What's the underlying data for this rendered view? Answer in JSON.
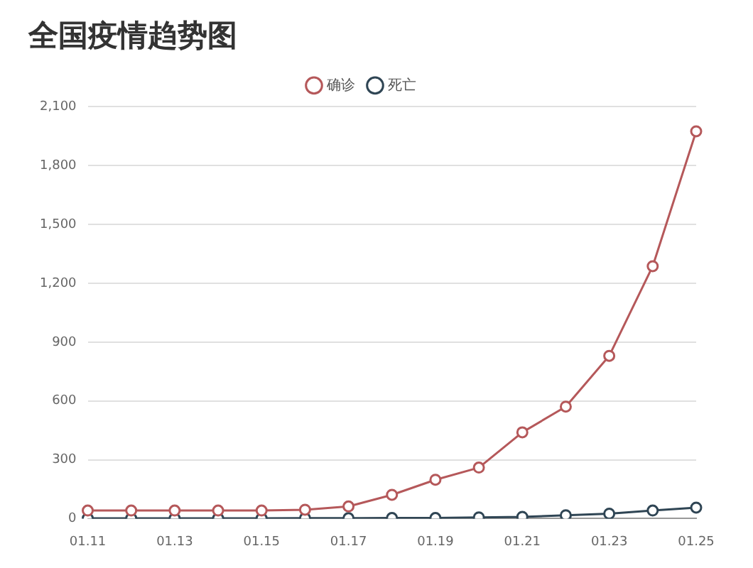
{
  "chart_data": {
    "type": "line",
    "title": "全国疫情趋势图",
    "categories": [
      "01.11",
      null,
      "01.13",
      null,
      "01.15",
      null,
      "01.17",
      null,
      "01.19",
      null,
      "01.21",
      null,
      "01.23",
      null,
      "01.25"
    ],
    "series": [
      {
        "name": "确诊",
        "color": "#b5585a",
        "values": [
          41,
          41,
          41,
          41,
          41,
          45,
          62,
          121,
          198,
          260,
          440,
          571,
          830,
          1287,
          1975
        ]
      },
      {
        "name": "死亡",
        "color": "#2f4554",
        "values": [
          1,
          1,
          1,
          1,
          1,
          2,
          2,
          3,
          3,
          6,
          9,
          17,
          25,
          41,
          56
        ]
      }
    ],
    "ylim": [
      0,
      2100
    ],
    "yticks": [
      0,
      300,
      600,
      900,
      {
        "value": 1200,
        "label": "1,200"
      },
      {
        "value": 1500,
        "label": "1,500"
      },
      {
        "value": 1800,
        "label": "1,800"
      },
      {
        "value": 2100,
        "label": "2,100"
      }
    ],
    "grid": "y",
    "legend": "top",
    "marker": "circle"
  }
}
